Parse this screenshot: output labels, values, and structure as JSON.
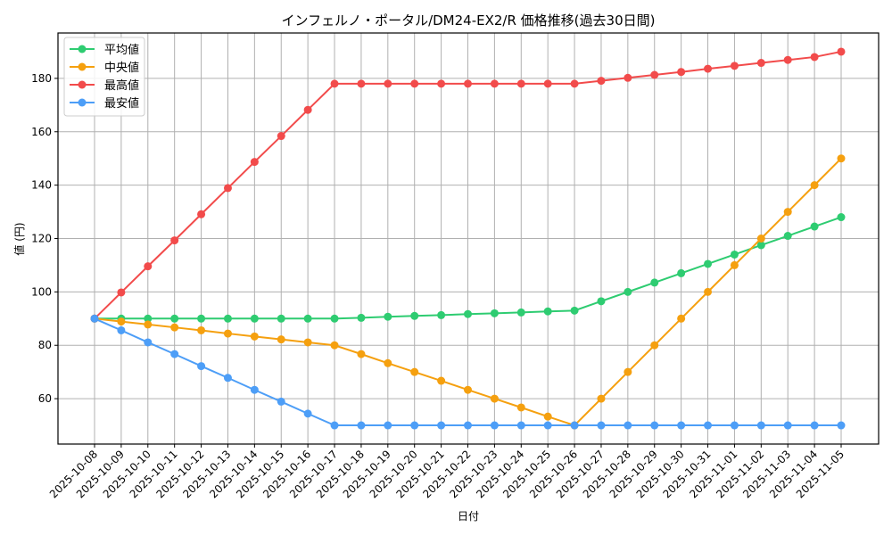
{
  "chart_data": {
    "type": "line",
    "title": "インフェルノ・ポータル/DM24-EX2/R 価格推移(過去30日間)",
    "xlabel": "日付",
    "ylabel": "値 (円)",
    "ylim": [
      43,
      197
    ],
    "yticks": [
      60,
      80,
      100,
      120,
      140,
      160,
      180
    ],
    "grid": true,
    "legend_position": "upper left",
    "x": [
      "2025-10-08",
      "2025-10-09",
      "2025-10-10",
      "2025-10-11",
      "2025-10-12",
      "2025-10-13",
      "2025-10-14",
      "2025-10-15",
      "2025-10-16",
      "2025-10-17",
      "2025-10-18",
      "2025-10-19",
      "2025-10-20",
      "2025-10-21",
      "2025-10-22",
      "2025-10-23",
      "2025-10-24",
      "2025-10-25",
      "2025-10-26",
      "2025-10-27",
      "2025-10-28",
      "2025-10-29",
      "2025-10-30",
      "2025-10-31",
      "2025-11-01",
      "2025-11-02",
      "2025-11-03",
      "2025-11-04",
      "2025-11-05"
    ],
    "series": [
      {
        "name": "平均値",
        "color": "#2ecc71",
        "values": [
          90,
          90,
          90,
          90,
          90,
          90,
          90,
          90,
          90,
          90,
          90.3,
          90.7,
          91,
          91.3,
          91.7,
          92,
          92.3,
          92.7,
          93,
          96.5,
          100,
          103.5,
          107,
          110.5,
          114,
          117.5,
          121,
          124.5,
          128
        ]
      },
      {
        "name": "中央値",
        "color": "#f5a00f",
        "values": [
          90,
          88.9,
          87.8,
          86.7,
          85.6,
          84.4,
          83.3,
          82.2,
          81.1,
          80,
          76.7,
          73.3,
          70,
          66.7,
          63.3,
          60,
          56.7,
          53.3,
          50,
          60,
          70,
          80,
          90,
          100,
          110,
          120,
          130,
          140,
          150
        ]
      },
      {
        "name": "最高値",
        "color": "#f24b4b",
        "values": [
          90,
          99.8,
          109.6,
          119.3,
          129.1,
          138.9,
          148.7,
          158.4,
          168.2,
          178,
          178,
          178,
          178,
          178,
          178,
          178,
          178,
          178,
          178,
          179.1,
          180.2,
          181.3,
          182.4,
          183.6,
          184.7,
          185.8,
          186.9,
          188,
          190
        ]
      },
      {
        "name": "最安値",
        "color": "#4d9ef7",
        "values": [
          90,
          85.6,
          81.1,
          76.7,
          72.2,
          67.8,
          63.3,
          58.9,
          54.4,
          50,
          50,
          50,
          50,
          50,
          50,
          50,
          50,
          50,
          50,
          50,
          50,
          50,
          50,
          50,
          50,
          50,
          50,
          50,
          50
        ]
      }
    ]
  }
}
